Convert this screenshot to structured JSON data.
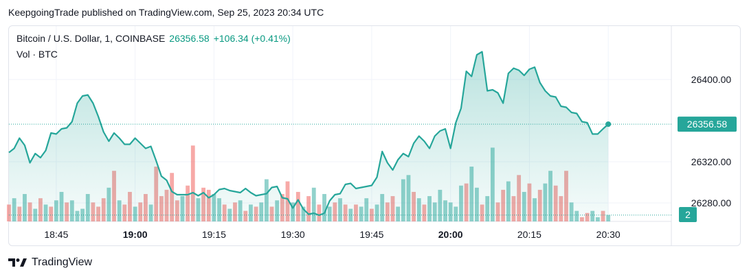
{
  "header": {
    "published_text": "KeepgoingTrade published on TradingView.com, Sep 25, 2023 20:34 UTC"
  },
  "legend": {
    "symbol": "Bitcoin / U.S. Dollar, 1, COINBASE",
    "last_price": "26356.58",
    "change": "+106.34 (+0.41%)",
    "volume_label": "Vol · BTC"
  },
  "footer": {
    "brand": "TradingView"
  },
  "colors": {
    "line": "#26a69a",
    "up": "#26a69a",
    "down": "#ef5350",
    "text": "#131722"
  },
  "chart_data": {
    "type": "area",
    "x_unit": "time (UTC, 1-minute bars)",
    "xlim": [
      "18:36",
      "20:42"
    ],
    "x_ticks": [
      "18:45",
      "19:00",
      "19:15",
      "19:30",
      "19:45",
      "20:00",
      "20:15",
      "20:30"
    ],
    "x_ticks_bold": [
      "19:00",
      "20:00"
    ],
    "ylim": [
      26262,
      26452
    ],
    "y_ticks": [
      26280,
      26320,
      26400
    ],
    "y_tick_labels": [
      "26280.00",
      "26320.00",
      "26400.00"
    ],
    "last_value_label": "26356.58",
    "last_volume_label": "2",
    "price": {
      "start_time": "18:36",
      "interval_minutes": 1,
      "values": [
        26329,
        26333,
        26343,
        26336,
        26319,
        26328,
        26324,
        26331,
        26348,
        26347,
        26352,
        26353,
        26359,
        26377,
        26384,
        26385,
        26377,
        26364,
        26349,
        26340,
        26348,
        26343,
        26337,
        26337,
        26343,
        26338,
        26333,
        26335,
        26321,
        26306,
        26302,
        26291,
        26288,
        26288,
        26288,
        26290,
        26287,
        26290,
        26285,
        26288,
        26293,
        26294,
        26292,
        26291,
        26290,
        26294,
        26290,
        26287,
        26288,
        26289,
        26295,
        26296,
        26285,
        26284,
        26275,
        26283,
        26274,
        26269,
        26270,
        26268,
        26270,
        26282,
        26288,
        26289,
        26298,
        26299,
        26294,
        26295,
        26296,
        26297,
        26305,
        26330,
        26319,
        26312,
        26322,
        26328,
        26325,
        26338,
        26345,
        26340,
        26333,
        26345,
        26350,
        26352,
        26333,
        26358,
        26372,
        26408,
        26403,
        26424,
        26427,
        26389,
        26390,
        26387,
        26377,
        26406,
        26411,
        26409,
        26404,
        26410,
        26412,
        26397,
        26389,
        26384,
        26383,
        26374,
        26373,
        26368,
        26367,
        26359,
        26358,
        26347,
        26347,
        26352,
        26356.58
      ]
    },
    "volume": {
      "start_time": "18:36",
      "interval_minutes": 1,
      "ylim": [
        0,
        200
      ],
      "values": [
        40,
        55,
        35,
        65,
        45,
        30,
        55,
        40,
        35,
        50,
        70,
        45,
        50,
        25,
        30,
        65,
        45,
        35,
        55,
        80,
        120,
        50,
        40,
        70,
        35,
        45,
        65,
        40,
        130,
        60,
        75,
        115,
        50,
        60,
        85,
        180,
        55,
        80,
        75,
        65,
        55,
        40,
        30,
        45,
        50,
        25,
        40,
        35,
        45,
        100,
        35,
        50,
        65,
        95,
        45,
        70,
        35,
        60,
        80,
        40,
        65,
        35,
        45,
        55,
        40,
        30,
        40,
        35,
        55,
        30,
        40,
        65,
        45,
        60,
        35,
        100,
        110,
        70,
        55,
        40,
        60,
        45,
        75,
        50,
        45,
        35,
        85,
        90,
        130,
        80,
        40,
        60,
        175,
        45,
        75,
        95,
        60,
        110,
        70,
        90,
        55,
        75,
        90,
        120,
        85,
        60,
        120,
        45,
        25,
        10,
        20,
        25,
        10,
        25,
        15
      ],
      "directions": [
        "d",
        "u",
        "d",
        "u",
        "d",
        "u",
        "d",
        "u",
        "d",
        "u",
        "u",
        "d",
        "u",
        "u",
        "u",
        "u",
        "d",
        "d",
        "d",
        "u",
        "d",
        "u",
        "d",
        "d",
        "u",
        "d",
        "d",
        "u",
        "d",
        "d",
        "d",
        "d",
        "d",
        "u",
        "d",
        "d",
        "u",
        "d",
        "d",
        "u",
        "u",
        "d",
        "u",
        "d",
        "u",
        "d",
        "u",
        "d",
        "u",
        "u",
        "d",
        "u",
        "d",
        "d",
        "u",
        "d",
        "u",
        "d",
        "u",
        "d",
        "u",
        "u",
        "d",
        "u",
        "d",
        "u",
        "d",
        "u",
        "u",
        "d",
        "u",
        "u",
        "d",
        "d",
        "u",
        "u",
        "u",
        "d",
        "u",
        "d",
        "u",
        "u",
        "u",
        "u",
        "u",
        "u",
        "u",
        "d",
        "u",
        "u",
        "d",
        "u",
        "u",
        "d",
        "d",
        "u",
        "d",
        "d",
        "u",
        "d",
        "u",
        "d",
        "u",
        "u",
        "d",
        "d",
        "d",
        "u",
        "u",
        "d",
        "d",
        "u",
        "u",
        "d",
        "u"
      ]
    }
  }
}
